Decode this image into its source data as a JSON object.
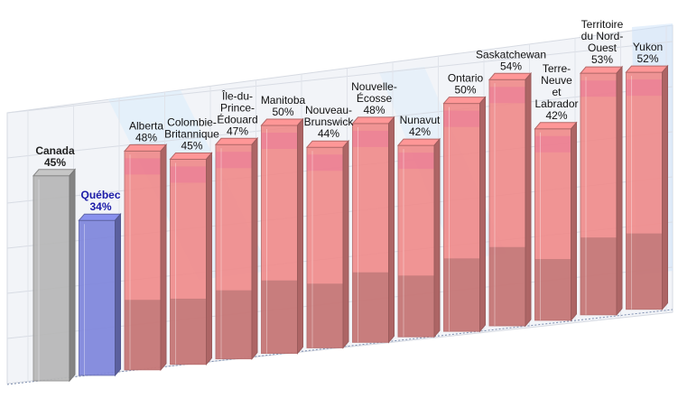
{
  "chart_data": {
    "type": "bar",
    "title": "",
    "xlabel": "",
    "ylabel": "",
    "ylim": [
      0,
      60
    ],
    "grid": true,
    "legend": "none",
    "categories": [
      [
        "Canada"
      ],
      [
        "Québec"
      ],
      [
        "Alberta"
      ],
      [
        "Colombie-",
        "Britannique"
      ],
      [
        "Île-du-",
        "Prince-",
        "Édouard"
      ],
      [
        "Manitoba"
      ],
      [
        "Nouveau-",
        "Brunswick"
      ],
      [
        "Nouvelle-",
        "Écosse"
      ],
      [
        "Nunavut"
      ],
      [
        "Ontario"
      ],
      [
        "Saskatchewan"
      ],
      [
        "Terre-",
        "Neuve",
        "et",
        "Labrador"
      ],
      [
        "Territoire",
        "du Nord-",
        "Ouest"
      ],
      [
        "Yukon"
      ]
    ],
    "values": [
      45,
      34,
      48,
      45,
      47,
      50,
      44,
      48,
      42,
      50,
      54,
      42,
      53,
      52
    ],
    "value_labels": [
      "45%",
      "34%",
      "48%",
      "45%",
      "47%",
      "50%",
      "44%",
      "48%",
      "42%",
      "50%",
      "54%",
      "42%",
      "53%",
      "52%"
    ],
    "colors": {
      "Canada": "#b7b7b7",
      "Québec": "#7f86dc",
      "provinces": "#f08c8c",
      "canada_label": "#222222",
      "quebec_label": "#1a1aa8"
    }
  }
}
